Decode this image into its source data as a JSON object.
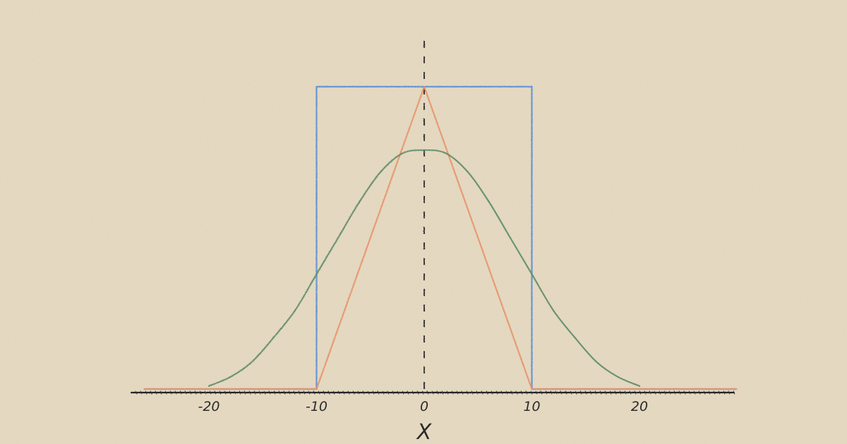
{
  "chart_data": {
    "type": "line",
    "title": "",
    "xlabel": "X",
    "ylabel": "",
    "xlim": [
      -26,
      29
    ],
    "ylim": [
      0,
      1.14
    ],
    "grid": false,
    "legend": "none",
    "x_ticks": [
      {
        "value": -20,
        "label": "-20"
      },
      {
        "value": -10,
        "label": "-10"
      },
      {
        "value": 0,
        "label": "0"
      },
      {
        "value": 10,
        "label": "10"
      },
      {
        "value": 20,
        "label": "20"
      }
    ],
    "reference_line": {
      "x": 0,
      "style": "dashed"
    },
    "series": [
      {
        "color": "#5b8fd6",
        "x": [
          -26,
          -10,
          -10,
          10,
          10,
          29
        ],
        "y": [
          0,
          0,
          1,
          1,
          0,
          0
        ]
      },
      {
        "color": "#e8946a",
        "x": [
          -26,
          -10,
          0,
          10,
          29
        ],
        "y": [
          0,
          0,
          1,
          0,
          0
        ]
      },
      {
        "color": "#5e8c6a",
        "x": [
          -20,
          -18,
          -16,
          -14,
          -12,
          -10,
          -8,
          -6,
          -4,
          -2,
          0,
          2,
          4,
          6,
          8,
          10,
          12,
          14,
          16,
          18,
          20
        ],
        "y": [
          0.01,
          0.04,
          0.09,
          0.17,
          0.26,
          0.38,
          0.5,
          0.62,
          0.72,
          0.78,
          0.79,
          0.78,
          0.72,
          0.62,
          0.5,
          0.38,
          0.26,
          0.17,
          0.09,
          0.04,
          0.01
        ]
      }
    ]
  }
}
